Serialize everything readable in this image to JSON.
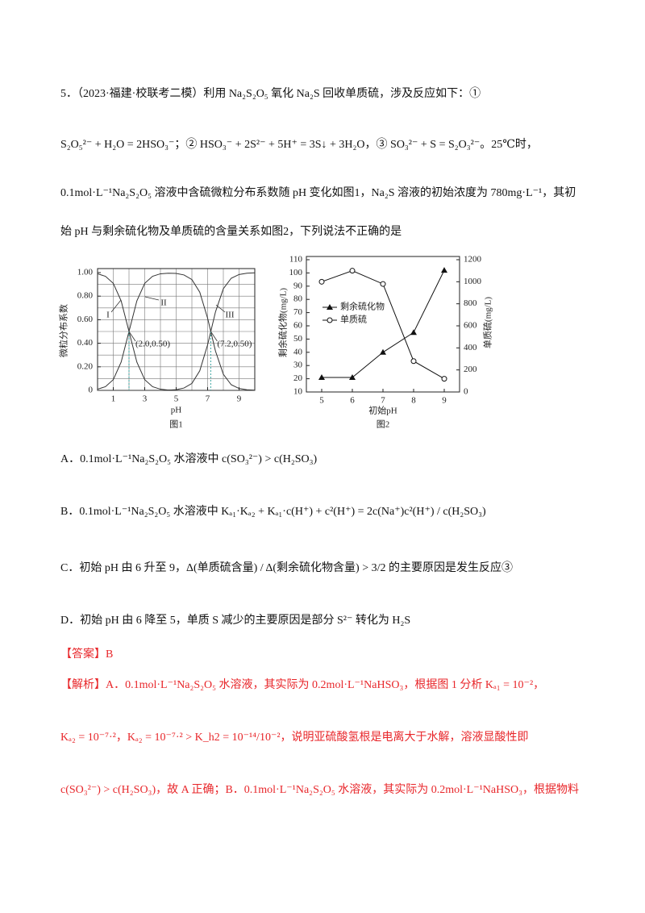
{
  "question": {
    "lines": [
      "5．（2023·福建·校联考二模）利用 Na₂S₂O₅ 氧化 Na₂S 回收单质硫，涉及反应如下：①",
      "S₂O₅²⁻ + H₂O = 2HSO₃⁻；② HSO₃⁻ + 2S²⁻ + 5H⁺ = 3S↓ + 3H₂O，③ SO₃²⁻ + S = S₂O₃²⁻。25℃时，",
      "0.1mol·L⁻¹Na₂S₂O₅ 溶液中含硫微粒分布系数随 pH 变化如图1，Na₂S 溶液的初始浓度为 780mg·L⁻¹，其初",
      "始 pH 与剩余硫化物及单质硫的含量关系如图2，下列说法不正确的是"
    ]
  },
  "chart_data": [
    {
      "type": "line",
      "x": [
        0,
        0.5,
        1,
        1.5,
        2,
        2.5,
        3,
        3.5,
        4,
        4.5,
        5,
        5.5,
        6,
        6.5,
        7,
        7.5,
        8,
        8.5,
        9,
        9.5,
        10
      ],
      "series": [
        {
          "name": "I",
          "color": "#333333",
          "values": [
            0.99,
            0.969,
            0.909,
            0.76,
            0.5,
            0.24,
            0.091,
            0.031,
            0.01,
            0.003,
            0.001,
            0,
            0,
            0,
            0,
            0,
            0,
            0,
            0,
            0,
            0
          ]
        },
        {
          "name": "II",
          "color": "#333333",
          "values": [
            0.01,
            0.031,
            0.091,
            0.24,
            0.5,
            0.76,
            0.909,
            0.969,
            0.99,
            0.995,
            0.993,
            0.98,
            0.941,
            0.834,
            0.613,
            0.334,
            0.137,
            0.048,
            0.016,
            0.005,
            0.002
          ]
        },
        {
          "name": "III",
          "color": "#333333",
          "values": [
            0,
            0,
            0,
            0,
            0,
            0,
            0,
            0,
            0,
            0.002,
            0.006,
            0.02,
            0.059,
            0.166,
            0.387,
            0.666,
            0.863,
            0.952,
            0.984,
            0.995,
            0.998
          ]
        }
      ],
      "xlim": [
        0,
        10
      ],
      "ylim": [
        0,
        1
      ],
      "xticks": [
        1,
        3,
        5,
        7,
        9
      ],
      "yticks": [
        0,
        {
          "value": 0.2,
          "label": "0.20"
        },
        {
          "value": 0.4,
          "label": "0.40"
        },
        {
          "value": 0.6,
          "label": "0.60"
        },
        {
          "value": 0.8,
          "label": "0.80"
        },
        {
          "value": 1,
          "label": "1.00"
        }
      ],
      "xgrid": [
        1,
        2,
        3,
        4,
        5,
        6,
        7,
        8,
        9
      ],
      "ygrid": [
        0.1,
        0.2,
        0.3,
        0.4,
        0.5,
        0.6,
        0.7,
        0.8,
        0.9
      ],
      "grid": true,
      "xlabel": "pH",
      "ylabel": "微粒分布系数",
      "caption": "图1",
      "annotations": [
        {
          "text": "(2.0,0.50)",
          "x": 2,
          "y": 0.5
        },
        {
          "text": "(7.2,0.50)",
          "x": 7.2,
          "y": 0.5
        }
      ]
    },
    {
      "type": "line",
      "x": [
        5,
        6,
        7,
        8,
        9
      ],
      "series": [
        {
          "name": "剩余硫化物",
          "color": "#111111",
          "marker": "triangle",
          "values": [
            21,
            21,
            40,
            55,
            102
          ]
        },
        {
          "name": "单质硫",
          "color": "#111111",
          "marker": "circle",
          "axis": "y2",
          "values": [
            1000,
            1100,
            980,
            280,
            120
          ]
        }
      ],
      "xlim": [
        4.5,
        9.5
      ],
      "ylim": [
        10,
        110
      ],
      "y2lim": [
        0,
        1200
      ],
      "xticks": [
        5,
        6,
        7,
        8,
        9
      ],
      "yticks": [
        10,
        20,
        30,
        40,
        50,
        60,
        70,
        80,
        90,
        100,
        110
      ],
      "y2ticks": [
        0,
        200,
        400,
        600,
        800,
        1000,
        1200
      ],
      "grid": false,
      "xlabel": "初始pH",
      "ylabel": "剩余硫化物(mg/L)",
      "y2label": "单质硫(mg/L)",
      "caption": "图2",
      "legend": "left"
    }
  ],
  "options": [
    "A．0.1mol·L⁻¹Na₂S₂O₅ 水溶液中 c(SO₃²⁻) > c(H₂SO₃)",
    "B．0.1mol·L⁻¹Na₂S₂O₅ 水溶液中 Kₐ₁·Kₐ₂ + Kₐ₁·c(H⁺) + c²(H⁺) = 2c(Na⁺)c²(H⁺) / c(H₂SO₃)",
    "C．初始 pH 由 6 升至 9，Δ(单质硫含量) / Δ(剩余硫化物含量) > 3/2 的主要原因是发生反应③",
    "D．初始 pH 由 6 降至 5，单质 S 减少的主要原因是部分 S²⁻ 转化为 H₂S"
  ],
  "answer": "【答案】B",
  "analysis": {
    "label": "【解析】",
    "lines": [
      "A．0.1mol·L⁻¹Na₂S₂O₅ 水溶液，其实际为 0.2mol·L⁻¹NaHSO₃，根据图 1 分析 Kₐ₁ = 10⁻²，",
      "Kₐ₂ = 10⁻⁷·²，Kₐ₂ = 10⁻⁷·² > K_h2 = 10⁻¹⁴/10⁻²，说明亚硫酸氢根是电离大于水解，溶液显酸性即",
      "c(SO₃²⁻) > c(H₂SO₃)，故 A 正确；B．0.1mol·L⁻¹Na₂S₂O₅ 水溶液，其实际为 0.2mol·L⁻¹NaHSO₃，根据物料"
    ]
  }
}
